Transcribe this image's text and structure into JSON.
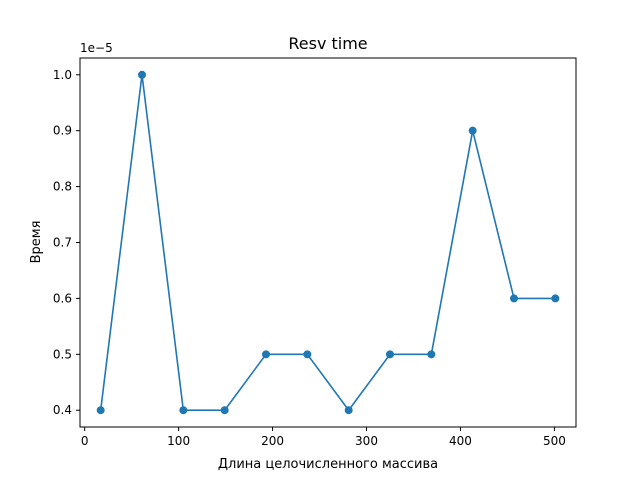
{
  "chart_data": {
    "type": "line",
    "title": "Resv time",
    "xlabel": "Длина целочисленного массива",
    "ylabel": "Время",
    "scale_label": "1e−5",
    "xlim": [
      -5,
      523
    ],
    "ylim": [
      0.37,
      1.03
    ],
    "xticks": [
      0,
      100,
      200,
      300,
      400,
      500
    ],
    "yticks": [
      0.4,
      0.5,
      0.6,
      0.7,
      0.8,
      0.9,
      1.0
    ],
    "ytick_labels": [
      "0.4",
      "0.5",
      "0.6",
      "0.7",
      "0.8",
      "0.9",
      "1.0"
    ],
    "grid": false,
    "series": [
      {
        "color": "#1f77b4",
        "marker": "circle",
        "x": [
          17,
          61,
          105,
          149,
          193,
          237,
          281,
          325,
          369,
          413,
          457,
          501
        ],
        "y": [
          0.4,
          1.0,
          0.4,
          0.4,
          0.5,
          0.5,
          0.4,
          0.5,
          0.5,
          0.9,
          0.6,
          0.6
        ]
      }
    ]
  }
}
